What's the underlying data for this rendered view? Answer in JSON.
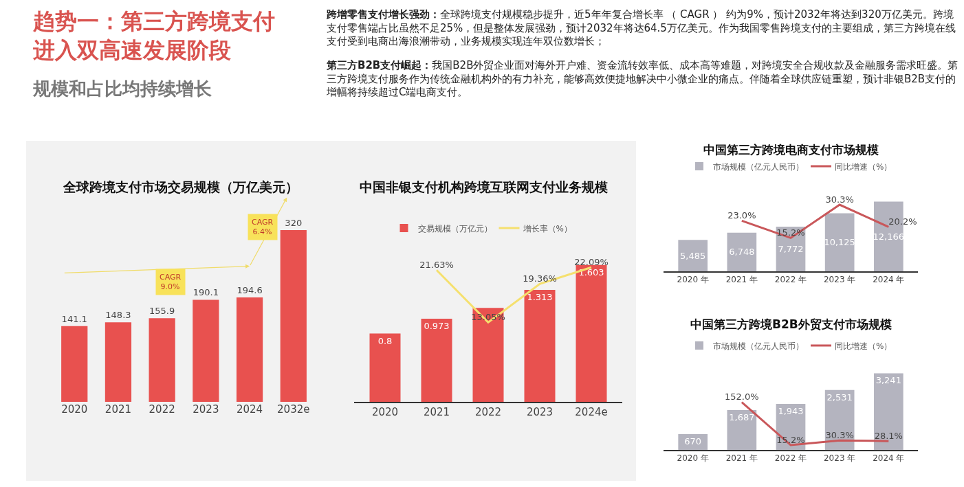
{
  "chart_data": [
    {
      "type": "other",
      "title": "趋势一：第三方跨境支付进入双高速发展阶段",
      "subtitle": "规模和占比均持续增长",
      "annotations": [
        "跨增零售支付增长强劲：",
        "全球跨境支付规模稳步提升，近5年年复合增长率 （ CAGR ） 约为9%，预计2032年将达到320万亿美元。跨境支付零售端占比虽然不足25%，但是整体发展强劲，预计2032年将达64.5万亿美元。作为我国零售跨境支付的主要组成，第三方跨境在线支付受到电商出海浪潮带动，业务规模实现连年双位数增长；",
        "第三方B2B支付崛起：",
        "我国B2B外贸企业面对海外开户难、资金流转效率低、成本高等难题，对跨境安全合规收款及金融服务需求旺盛。第三方跨境支付服务作为传统金融机构外的有力补充，能够高效便捷地解决中小微企业的痛点。伴随着全球供应链重塑，预计非银B2B支付的增幅将持续超过C端电商支付。"
      ]
    },
    {
      "type": "bar",
      "title": "全球跨境支付市场交易规模（万亿美元）",
      "categories": [
        "2020",
        "2021",
        "2022",
        "2023",
        "2024",
        "2032e"
      ],
      "series": [
        {
          "type": "bar",
          "color": "#e8514f",
          "values": [
            141.1,
            148.3,
            155.9,
            190.1,
            194.6,
            320
          ],
          "value_labels": [
            "141.1",
            "148.3",
            "155.9",
            "190.1",
            "194.6",
            "320"
          ]
        }
      ],
      "annotations": [
        "CAGR\n9.0%",
        "CAGR\n6.4%"
      ]
    },
    {
      "type": "bar",
      "title": "中国非银支付机构跨境互联网支付业务规模",
      "categories": [
        "2020",
        "2021",
        "2022",
        "2023",
        "2024e"
      ],
      "legend": "top",
      "series": [
        {
          "type": "bar",
          "name": "交易规模（万亿元）",
          "color": "#e8514f",
          "values": [
            0.8,
            0.973,
            1.1,
            1.313,
            1.603
          ],
          "value_labels": [
            "0.8",
            "0.973",
            null,
            "1.313",
            "1.603"
          ]
        },
        {
          "type": "line",
          "axis": "y2",
          "name": "增长率（%）",
          "color": "#f5e06e",
          "values": [
            null,
            21.63,
            13.05,
            19.36,
            22.09
          ],
          "value_labels": [
            null,
            "21.63%",
            "13.05%",
            "19.36%",
            "22.09%"
          ]
        }
      ]
    },
    {
      "type": "bar",
      "title": "中国第三方跨境电商支付市场规模",
      "categories": [
        "2020 年",
        "2021 年",
        "2022 年",
        "2023 年",
        "2024 年"
      ],
      "legend": "top",
      "series": [
        {
          "type": "bar",
          "name": "市场规模（亿元人民币）",
          "color": "#b4b4bf",
          "values": [
            5485,
            6748,
            7772,
            10125,
            12166
          ],
          "value_labels": [
            "5,485",
            "6,748",
            "7,772",
            "10,125",
            "12,166"
          ]
        },
        {
          "type": "line",
          "axis": "y2",
          "name": "同比增速（%）",
          "color": "#c9575a",
          "values": [
            null,
            23.0,
            15.2,
            30.3,
            20.2
          ],
          "value_labels": [
            null,
            "23.0%",
            "15.2%",
            "30.3%",
            "20.2%"
          ]
        }
      ]
    },
    {
      "type": "bar",
      "title": "中国第三方跨境B2B外贸支付市场规模",
      "categories": [
        "2020 年",
        "2021 年",
        "2022 年",
        "2023 年",
        "2024 年"
      ],
      "legend": "top",
      "series": [
        {
          "type": "bar",
          "name": "市场规模（亿元人民币）",
          "color": "#b4b4bf",
          "values": [
            670,
            1687,
            1943,
            2531,
            3241
          ],
          "value_labels": [
            "670",
            "1,687",
            "1,943",
            "2,531",
            "3,241"
          ]
        },
        {
          "type": "line",
          "axis": "y2",
          "name": "同比增速（%）",
          "color": "#c9575a",
          "values": [
            null,
            152.0,
            15.2,
            30.3,
            28.1
          ],
          "value_labels": [
            null,
            "152.0%",
            "15.2%",
            "30.3%",
            "28.1%"
          ]
        }
      ]
    }
  ]
}
